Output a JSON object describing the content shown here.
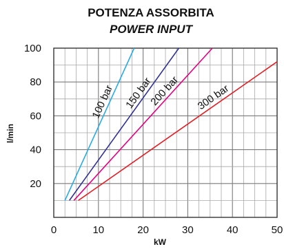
{
  "chart_data": {
    "type": "line",
    "title": "POTENZA ASSORBITA",
    "subtitle": "POWER INPUT",
    "xlabel": "kW",
    "ylabel": "l/min",
    "xlim": [
      0,
      50
    ],
    "ylim": [
      0,
      100
    ],
    "xticks": [
      "0",
      "10",
      "20",
      "30",
      "40",
      "50"
    ],
    "yticks": [
      "20",
      "40",
      "60",
      "80",
      "100"
    ],
    "grid": true,
    "legend": "none",
    "series": [
      {
        "name": "100 bar",
        "color": "#29abe2",
        "x": [
          2.5,
          18.0
        ],
        "y": [
          10,
          100
        ]
      },
      {
        "name": "150 bar",
        "color": "#2e3192",
        "x": [
          3.5,
          28.0
        ],
        "y": [
          10,
          100
        ]
      },
      {
        "name": "200 bar",
        "color": "#e6007e",
        "x": [
          4.5,
          35.5
        ],
        "y": [
          10,
          100
        ]
      },
      {
        "name": "300 bar",
        "color": "#e31e24",
        "x": [
          5.5,
          50.0
        ],
        "y": [
          10,
          92
        ]
      }
    ]
  }
}
